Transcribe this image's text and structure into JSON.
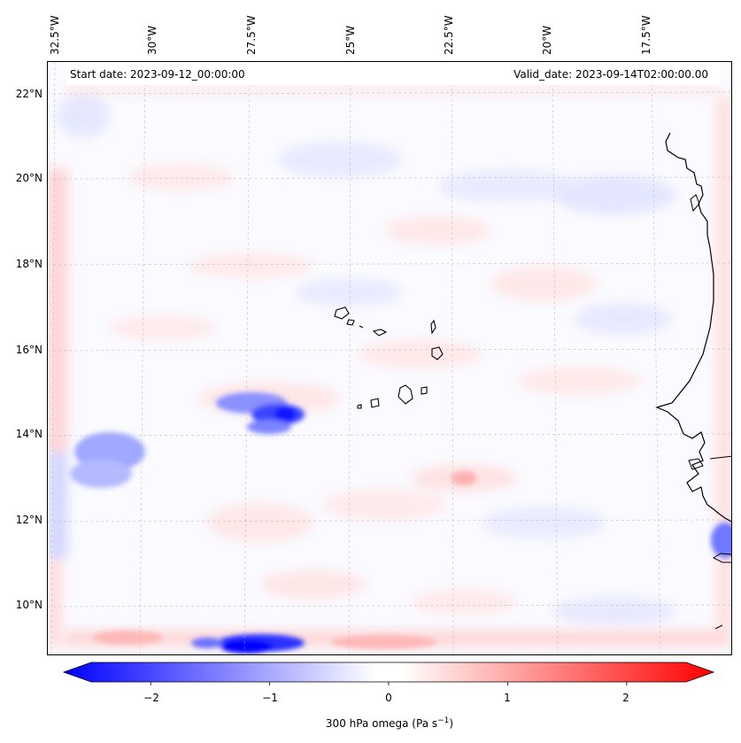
{
  "header": {
    "start_date": "Start date: 2023-09-12_00:00:00",
    "valid_date": "Valid_date: 2023-09-14T02:00:00.00"
  },
  "axes": {
    "lon_labels": [
      "32.5°W",
      "30°W",
      "27.5°W",
      "25°W",
      "22.5°W",
      "20°W",
      "17.5°W"
    ],
    "lat_labels": [
      "22°N",
      "20°N",
      "18°N",
      "16°N",
      "14°N",
      "12°N",
      "10°N"
    ]
  },
  "colorbar": {
    "tick_labels": [
      "−2",
      "−1",
      "0",
      "1",
      "2"
    ],
    "ticks": [
      -2,
      -1,
      0,
      1,
      2
    ],
    "range": [
      -2.5,
      2.5
    ],
    "label_text": "300 hPa omega (Pa s",
    "label_exp": "−1",
    "label_close": ")"
  },
  "colors": {
    "negative": "#0000ff",
    "zero": "#ffffff",
    "positive": "#ff0000",
    "coast": "#000000"
  }
}
